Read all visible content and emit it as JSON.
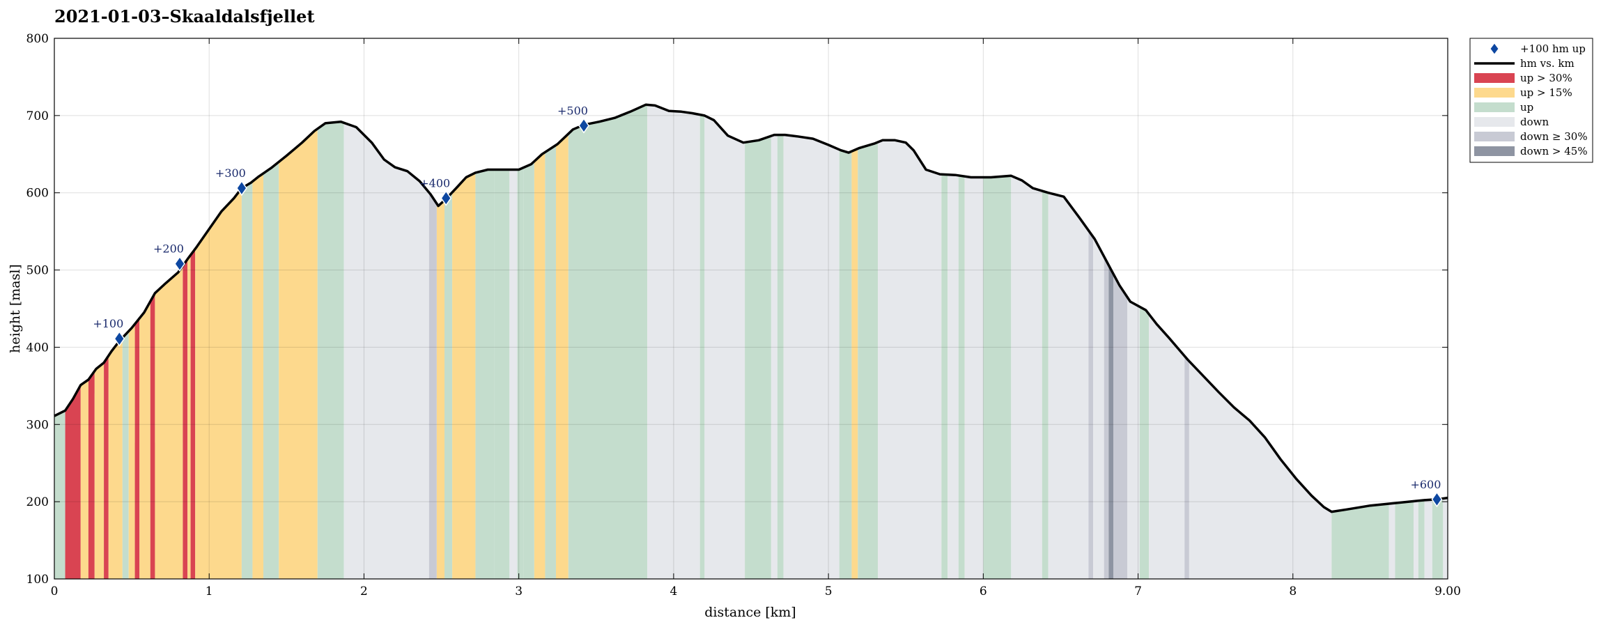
{
  "chart_data": {
    "type": "area",
    "title": "2021-01-03–Skaaldalsfjellet",
    "xlabel": "distance [km]",
    "ylabel": "height [masl]",
    "xlim": [
      0,
      9.0
    ],
    "ylim": [
      100,
      800
    ],
    "xticks": [
      0,
      1,
      2,
      3,
      4,
      5,
      6,
      7,
      8,
      9
    ],
    "xtick_labels": [
      "0",
      "1",
      "2",
      "3",
      "4",
      "5",
      "6",
      "7",
      "8",
      "9.00"
    ],
    "yticks": [
      100,
      200,
      300,
      400,
      500,
      600,
      700,
      800
    ],
    "ytick_labels": [
      "100",
      "200",
      "300",
      "400",
      "500",
      "600",
      "700",
      "800"
    ],
    "grid": true,
    "legend_placement": "outside-right",
    "colors": {
      "line": "#000000",
      "marker": "#0d47a1",
      "up_steep": "#d94452",
      "up_moderate": "#fdd98d",
      "up": "#c4ddcd",
      "down": "#e6e8ec",
      "down_steep": "#c8cad4",
      "down_very_steep": "#8e94a2",
      "marker_label": "#1a2a6c"
    },
    "legend": [
      {
        "key": "marker",
        "label": "+100 hm up",
        "symbol": "diamond"
      },
      {
        "key": "line",
        "label": "hm vs. km",
        "symbol": "line"
      },
      {
        "key": "up_steep",
        "label": "up > 30%",
        "symbol": "patch"
      },
      {
        "key": "up_moderate",
        "label": "up > 15%",
        "symbol": "patch"
      },
      {
        "key": "up",
        "label": "up",
        "symbol": "patch"
      },
      {
        "key": "down",
        "label": "down",
        "symbol": "patch"
      },
      {
        "key": "down_steep",
        "label": "down ≥ 30%",
        "symbol": "patch"
      },
      {
        "key": "down_very_steep",
        "label": "down > 45%",
        "symbol": "patch"
      }
    ],
    "profile": [
      [
        0.0,
        311
      ],
      [
        0.07,
        318
      ],
      [
        0.12,
        333
      ],
      [
        0.17,
        351
      ],
      [
        0.22,
        358
      ],
      [
        0.27,
        372
      ],
      [
        0.32,
        380
      ],
      [
        0.37,
        395
      ],
      [
        0.42,
        408
      ],
      [
        0.5,
        425
      ],
      [
        0.58,
        445
      ],
      [
        0.65,
        470
      ],
      [
        0.72,
        483
      ],
      [
        0.8,
        497
      ],
      [
        0.86,
        514
      ],
      [
        0.92,
        530
      ],
      [
        1.0,
        553
      ],
      [
        1.08,
        576
      ],
      [
        1.16,
        593
      ],
      [
        1.21,
        606
      ],
      [
        1.27,
        613
      ],
      [
        1.32,
        621
      ],
      [
        1.4,
        632
      ],
      [
        1.5,
        648
      ],
      [
        1.6,
        665
      ],
      [
        1.68,
        680
      ],
      [
        1.75,
        690
      ],
      [
        1.85,
        692
      ],
      [
        1.95,
        685
      ],
      [
        2.05,
        665
      ],
      [
        2.13,
        643
      ],
      [
        2.2,
        633
      ],
      [
        2.28,
        628
      ],
      [
        2.36,
        615
      ],
      [
        2.43,
        598
      ],
      [
        2.48,
        583
      ],
      [
        2.53,
        592
      ],
      [
        2.6,
        607
      ],
      [
        2.66,
        620
      ],
      [
        2.72,
        626
      ],
      [
        2.8,
        630
      ],
      [
        2.9,
        630
      ],
      [
        3.0,
        630
      ],
      [
        3.08,
        637
      ],
      [
        3.15,
        650
      ],
      [
        3.25,
        663
      ],
      [
        3.35,
        682
      ],
      [
        3.42,
        688
      ],
      [
        3.52,
        692
      ],
      [
        3.62,
        697
      ],
      [
        3.72,
        705
      ],
      [
        3.82,
        714
      ],
      [
        3.88,
        713
      ],
      [
        3.97,
        706
      ],
      [
        4.05,
        705
      ],
      [
        4.12,
        703
      ],
      [
        4.2,
        700
      ],
      [
        4.26,
        694
      ],
      [
        4.35,
        674
      ],
      [
        4.45,
        665
      ],
      [
        4.55,
        668
      ],
      [
        4.65,
        675
      ],
      [
        4.72,
        675
      ],
      [
        4.8,
        673
      ],
      [
        4.9,
        670
      ],
      [
        5.0,
        662
      ],
      [
        5.08,
        655
      ],
      [
        5.13,
        652
      ],
      [
        5.2,
        658
      ],
      [
        5.3,
        664
      ],
      [
        5.35,
        668
      ],
      [
        5.43,
        668
      ],
      [
        5.5,
        665
      ],
      [
        5.55,
        655
      ],
      [
        5.63,
        630
      ],
      [
        5.72,
        624
      ],
      [
        5.82,
        623
      ],
      [
        5.92,
        620
      ],
      [
        6.05,
        620
      ],
      [
        6.18,
        622
      ],
      [
        6.25,
        616
      ],
      [
        6.32,
        606
      ],
      [
        6.42,
        600
      ],
      [
        6.52,
        595
      ],
      [
        6.62,
        568
      ],
      [
        6.72,
        540
      ],
      [
        6.8,
        510
      ],
      [
        6.88,
        480
      ],
      [
        6.95,
        459
      ],
      [
        7.05,
        448
      ],
      [
        7.12,
        430
      ],
      [
        7.2,
        412
      ],
      [
        7.32,
        384
      ],
      [
        7.42,
        363
      ],
      [
        7.52,
        342
      ],
      [
        7.62,
        322
      ],
      [
        7.72,
        305
      ],
      [
        7.82,
        283
      ],
      [
        7.92,
        255
      ],
      [
        8.02,
        230
      ],
      [
        8.12,
        208
      ],
      [
        8.2,
        193
      ],
      [
        8.25,
        187
      ],
      [
        8.35,
        190
      ],
      [
        8.5,
        195
      ],
      [
        8.6,
        197
      ],
      [
        8.75,
        200
      ],
      [
        8.85,
        202
      ],
      [
        8.93,
        203
      ],
      [
        9.0,
        205
      ]
    ],
    "segments": [
      [
        0.0,
        0.07,
        "up"
      ],
      [
        0.07,
        0.17,
        "up_steep"
      ],
      [
        0.17,
        0.22,
        "up_moderate"
      ],
      [
        0.22,
        0.26,
        "up_steep"
      ],
      [
        0.26,
        0.32,
        "up_moderate"
      ],
      [
        0.32,
        0.35,
        "up_steep"
      ],
      [
        0.35,
        0.44,
        "up_moderate"
      ],
      [
        0.44,
        0.48,
        "up"
      ],
      [
        0.48,
        0.52,
        "up_moderate"
      ],
      [
        0.52,
        0.55,
        "up_steep"
      ],
      [
        0.55,
        0.62,
        "up_moderate"
      ],
      [
        0.62,
        0.65,
        "up_steep"
      ],
      [
        0.65,
        0.83,
        "up_moderate"
      ],
      [
        0.83,
        0.86,
        "up_steep"
      ],
      [
        0.86,
        0.88,
        "up_moderate"
      ],
      [
        0.88,
        0.91,
        "up_steep"
      ],
      [
        0.91,
        1.21,
        "up_moderate"
      ],
      [
        1.21,
        1.28,
        "up"
      ],
      [
        1.28,
        1.35,
        "up_moderate"
      ],
      [
        1.35,
        1.45,
        "up"
      ],
      [
        1.45,
        1.7,
        "up_moderate"
      ],
      [
        1.7,
        1.87,
        "up"
      ],
      [
        1.87,
        2.42,
        "down"
      ],
      [
        2.42,
        2.47,
        "down_steep"
      ],
      [
        2.47,
        2.52,
        "up_moderate"
      ],
      [
        2.52,
        2.57,
        "up"
      ],
      [
        2.57,
        2.72,
        "up_moderate"
      ],
      [
        2.72,
        2.84,
        "up"
      ],
      [
        2.84,
        2.94,
        "up"
      ],
      [
        2.94,
        2.99,
        "down"
      ],
      [
        2.99,
        3.03,
        "up"
      ],
      [
        3.03,
        3.1,
        "up"
      ],
      [
        3.1,
        3.17,
        "up_moderate"
      ],
      [
        3.17,
        3.24,
        "up"
      ],
      [
        3.24,
        3.32,
        "up_moderate"
      ],
      [
        3.32,
        3.83,
        "up"
      ],
      [
        3.83,
        4.17,
        "down"
      ],
      [
        4.17,
        4.2,
        "up"
      ],
      [
        4.2,
        4.46,
        "down"
      ],
      [
        4.46,
        4.63,
        "up"
      ],
      [
        4.63,
        4.67,
        "down"
      ],
      [
        4.67,
        4.71,
        "up"
      ],
      [
        4.71,
        5.07,
        "down"
      ],
      [
        5.07,
        5.15,
        "up"
      ],
      [
        5.15,
        5.19,
        "up_moderate"
      ],
      [
        5.19,
        5.32,
        "up"
      ],
      [
        5.32,
        5.73,
        "down"
      ],
      [
        5.73,
        5.77,
        "up"
      ],
      [
        5.77,
        5.84,
        "down"
      ],
      [
        5.84,
        5.88,
        "up"
      ],
      [
        5.88,
        6.0,
        "down"
      ],
      [
        6.0,
        6.18,
        "up"
      ],
      [
        6.18,
        6.38,
        "down"
      ],
      [
        6.38,
        6.42,
        "up"
      ],
      [
        6.42,
        6.68,
        "down"
      ],
      [
        6.68,
        6.71,
        "down_steep"
      ],
      [
        6.71,
        6.78,
        "down"
      ],
      [
        6.78,
        6.81,
        "down_steep"
      ],
      [
        6.81,
        6.84,
        "down_very_steep"
      ],
      [
        6.84,
        6.93,
        "down_steep"
      ],
      [
        6.93,
        7.01,
        "down"
      ],
      [
        7.01,
        7.07,
        "up"
      ],
      [
        7.07,
        7.3,
        "down"
      ],
      [
        7.3,
        7.33,
        "down_steep"
      ],
      [
        7.33,
        8.25,
        "down"
      ],
      [
        8.25,
        8.62,
        "up"
      ],
      [
        8.62,
        8.66,
        "down"
      ],
      [
        8.66,
        8.78,
        "up"
      ],
      [
        8.78,
        8.81,
        "down"
      ],
      [
        8.81,
        8.85,
        "up"
      ],
      [
        8.85,
        8.9,
        "down"
      ],
      [
        8.9,
        8.97,
        "up"
      ],
      [
        8.97,
        9.0,
        "down"
      ]
    ],
    "markers": [
      {
        "x": 0.42,
        "y": 411,
        "label": "+100"
      },
      {
        "x": 0.81,
        "y": 508,
        "label": "+200"
      },
      {
        "x": 1.21,
        "y": 606,
        "label": "+300"
      },
      {
        "x": 2.53,
        "y": 593,
        "label": "+400"
      },
      {
        "x": 3.42,
        "y": 687,
        "label": "+500"
      },
      {
        "x": 8.93,
        "y": 203,
        "label": "+600"
      }
    ]
  }
}
